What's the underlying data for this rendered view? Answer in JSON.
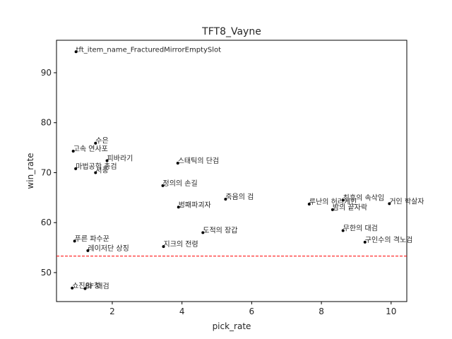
{
  "chart_data": {
    "type": "scatter",
    "title": "TFT8_Vayne",
    "xlabel": "pick_rate",
    "ylabel": "win_rate",
    "xlim": [
      0.4,
      10.45
    ],
    "ylim": [
      44.2,
      96.5
    ],
    "xticks": [
      2,
      4,
      6,
      8,
      10
    ],
    "yticks": [
      50,
      60,
      70,
      80,
      90
    ],
    "grid": false,
    "reference_line": {
      "y": 53.3,
      "color": "#ff0000",
      "style": "dashed"
    },
    "points": [
      {
        "label": "tft_item_name_FracturedMirrorEmptySlot",
        "x": 0.96,
        "y": 94.2
      },
      {
        "label": "수은",
        "x": 1.52,
        "y": 75.9
      },
      {
        "label": "고속 연사포",
        "x": 0.88,
        "y": 74.3
      },
      {
        "label": "피바라기",
        "x": 1.85,
        "y": 72.4
      },
      {
        "label": "스태틱의 단검",
        "x": 3.88,
        "y": 71.9
      },
      {
        "label": "마법공학 총검",
        "x": 0.95,
        "y": 70.8
      },
      {
        "label": "서풍",
        "x": 1.52,
        "y": 70.0
      },
      {
        "label": "정의의 손길",
        "x": 3.45,
        "y": 67.4
      },
      {
        "label": "죽음의 검",
        "x": 5.25,
        "y": 64.7
      },
      {
        "label": "최후의 속삭임",
        "x": 8.62,
        "y": 64.5
      },
      {
        "label": "루난의 허리케인",
        "x": 7.65,
        "y": 63.7
      },
      {
        "label": "거인 학살자",
        "x": 9.95,
        "y": 63.8
      },
      {
        "label": "밤의 끝자락",
        "x": 8.32,
        "y": 62.6
      },
      {
        "label": "벙패파괴자",
        "x": 3.9,
        "y": 63.1
      },
      {
        "label": "무한의 대검",
        "x": 8.62,
        "y": 58.4
      },
      {
        "label": "도적의 장갑",
        "x": 4.6,
        "y": 58.0
      },
      {
        "label": "구인수의 격노검",
        "x": 9.25,
        "y": 56.1
      },
      {
        "label": "푸른 파수꾼",
        "x": 0.92,
        "y": 56.3
      },
      {
        "label": "지크의 전령",
        "x": 3.47,
        "y": 55.2
      },
      {
        "label": "레이저단 상징",
        "x": 1.3,
        "y": 54.4
      },
      {
        "label": "쇼진의 창",
        "x": 0.85,
        "y": 46.9
      },
      {
        "label": "BF 대검",
        "x": 1.22,
        "y": 46.8
      }
    ]
  }
}
